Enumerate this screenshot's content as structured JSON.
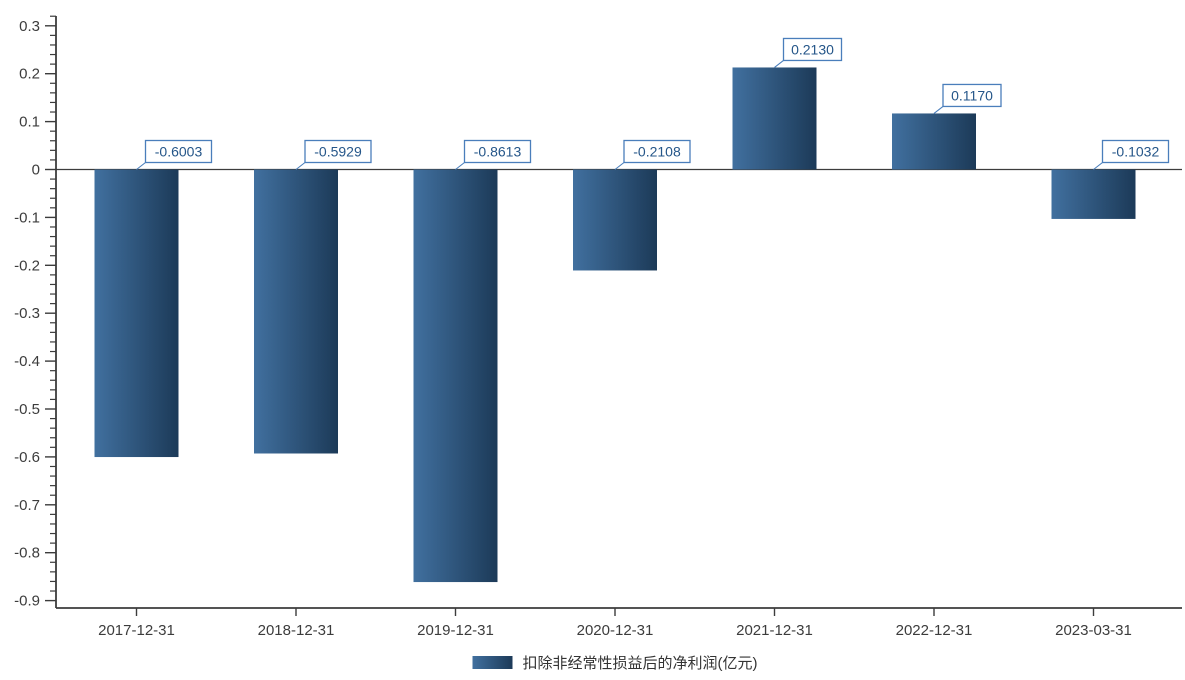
{
  "chart_data": {
    "type": "bar",
    "title": "",
    "categories": [
      "2017-12-31",
      "2018-12-31",
      "2019-12-31",
      "2020-12-31",
      "2021-12-31",
      "2022-12-31",
      "2023-03-31"
    ],
    "values": [
      -0.6003,
      -0.5929,
      -0.8613,
      -0.2108,
      0.213,
      0.117,
      -0.1032
    ],
    "value_labels": [
      "-0.6003",
      "-0.5929",
      "-0.8613",
      "-0.2108",
      "0.2130",
      "0.1170",
      "-0.1032"
    ],
    "series_name": "扣除非经常性损益后的净利润(亿元)",
    "legend": "扣除非经常性损益后的净利润(亿元)",
    "legend_position": "bottom-center",
    "xlabel": "",
    "ylabel": "",
    "ylim": [
      -0.92,
      0.32
    ],
    "y_major_ticks": [
      0.3,
      0.2,
      0.1,
      0,
      -0.1,
      -0.2,
      -0.3,
      -0.4,
      -0.5,
      -0.6,
      -0.7,
      -0.8,
      -0.9
    ],
    "y_tick_labels": [
      "0.3",
      "0.2",
      "0.1",
      "0",
      "-0.1",
      "-0.2",
      "-0.3",
      "-0.4",
      "-0.5",
      "-0.6",
      "-0.7",
      "-0.8",
      "-0.9"
    ],
    "y_minor_step": 0.02,
    "grid": false,
    "colors": {
      "bar_gradient_start": "#41709f",
      "bar_gradient_end": "#1c3a58",
      "annotation_border": "#4a7ebb",
      "annotation_text": "#255689",
      "annotation_background": "#ffffff",
      "axis": "#3c3c3c",
      "tick_text": "#3c3c3c"
    }
  }
}
